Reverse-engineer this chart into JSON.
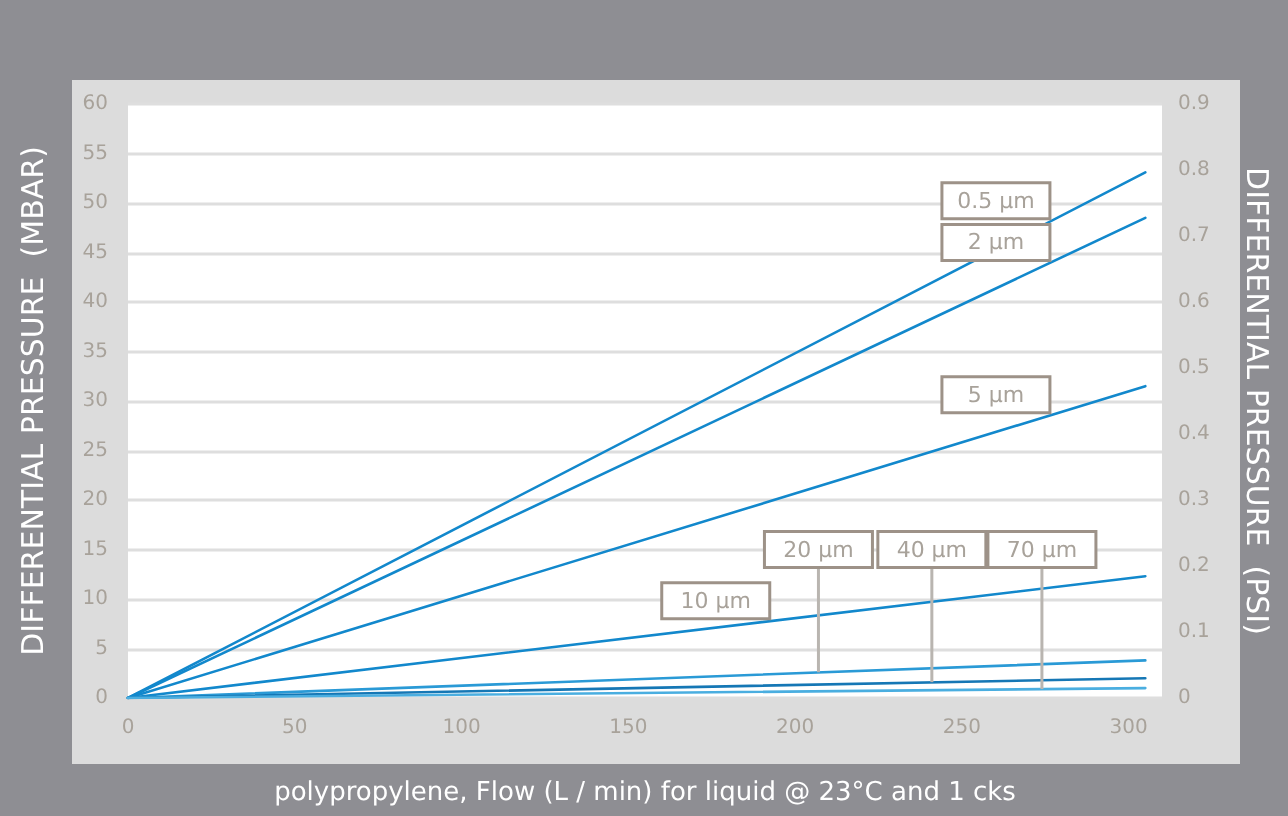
{
  "chart_data": {
    "type": "line",
    "xlabel": "polypropylene, Flow (L / min) for liquid @ 23°C and 1 cks",
    "ylabel": "DIFFERENTIAL PRESSURE  (MBAR)",
    "y2label": "DIFFERENTIAL PRESSURE  (PSI)",
    "x": [
      0,
      305
    ],
    "series": [
      {
        "color": "#1288cc",
        "values": [
          0,
          53.1
        ]
      },
      {
        "color": "#1288cc",
        "values": [
          0,
          48.5
        ]
      },
      {
        "color": "#1288cc",
        "values": [
          0,
          31.5
        ]
      },
      {
        "color": "#1288cc",
        "values": [
          0,
          12.3
        ]
      },
      {
        "color": "#2a9ad6",
        "values": [
          0,
          3.8
        ]
      },
      {
        "color": "#1577b5",
        "values": [
          0,
          2.0
        ]
      },
      {
        "color": "#4aaee0",
        "values": [
          0,
          1.0
        ]
      }
    ],
    "annotations": [
      {
        "text": "0.5 µm",
        "x": 277,
        "y": 48.2
      },
      {
        "text": "2 µm",
        "x": 277,
        "y": 44.0
      },
      {
        "text": "5 µm",
        "x": 277,
        "y": 28.6
      },
      {
        "text": "10 µm",
        "x": 193,
        "y": 7.8
      },
      {
        "text": "20 µm",
        "x": 207,
        "y": 2.6
      },
      {
        "text": "40 µm",
        "x": 241,
        "y": 1.6
      },
      {
        "text": "70 µm",
        "x": 274,
        "y": 0.9
      }
    ],
    "xlim": [
      0,
      310
    ],
    "xticks": [
      0,
      50,
      100,
      150,
      200,
      250,
      300
    ],
    "ylim": [
      0,
      60
    ],
    "yticks": [
      0,
      5,
      10,
      15,
      20,
      25,
      30,
      35,
      40,
      45,
      50,
      55,
      60
    ],
    "y2lim": [
      0,
      0.9
    ],
    "y2ticks": [
      0,
      0.1,
      0.2,
      0.3,
      0.4,
      0.5,
      0.6,
      0.7,
      0.8,
      0.9
    ],
    "grid": "y",
    "marker": "none",
    "line_style": "solid"
  }
}
